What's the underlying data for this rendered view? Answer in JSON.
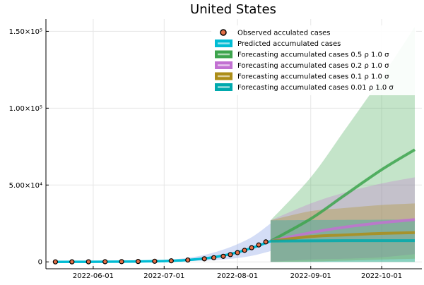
{
  "chart_data": {
    "type": "line",
    "title": "United States",
    "xlabel": "",
    "ylabel": "",
    "x_ticks": [
      "2022-06-01",
      "2022-07-01",
      "2022-08-01",
      "2022-09-01",
      "2022-10-01"
    ],
    "y_ticks": [
      {
        "value": 0,
        "label": "0"
      },
      {
        "value": 50000,
        "label": "5.00×10⁴"
      },
      {
        "value": 100000,
        "label": "1.00×10⁵"
      },
      {
        "value": 150000,
        "label": "1.50×10⁵"
      }
    ],
    "xlim": [
      "2022-05-12",
      "2022-10-18"
    ],
    "ylim": [
      -4500,
      158000
    ],
    "grid": true,
    "legend_position": "top-right",
    "legend": [
      {
        "label": "Observed acculated cases",
        "color": "#e26f46",
        "kind": "marker"
      },
      {
        "label": "Predicted accumulated cases",
        "color": "#00bcd4",
        "kind": "fill"
      },
      {
        "label": "Forecasting accumulated cases 0.5 ρ 1.0 σ",
        "color": "#3da44d",
        "kind": "fill"
      },
      {
        "label": "Forecasting accumulated cases 0.2 ρ 1.0 σ",
        "color": "#c271d2",
        "kind": "fill"
      },
      {
        "label": "Forecasting accumulated cases 0.1 ρ 1.0 σ",
        "color": "#ac8d18",
        "kind": "fill"
      },
      {
        "label": "Forecasting accumulated cases 0.01 ρ 1.0 σ",
        "color": "#00a9ad",
        "kind": "fill"
      }
    ],
    "observed": {
      "x": [
        "2022-05-16",
        "2022-05-23",
        "2022-05-30",
        "2022-06-06",
        "2022-06-13",
        "2022-06-20",
        "2022-06-27",
        "2022-07-04",
        "2022-07-11",
        "2022-07-18",
        "2022-07-22",
        "2022-07-26",
        "2022-07-29",
        "2022-08-01",
        "2022-08-04",
        "2022-08-07",
        "2022-08-10",
        "2022-08-13"
      ],
      "y": [
        0,
        20,
        50,
        90,
        150,
        250,
        400,
        700,
        1200,
        2000,
        2700,
        3600,
        4700,
        6000,
        7500,
        9200,
        11000,
        13000
      ]
    },
    "predicted": {
      "x": [
        "2022-05-16",
        "2022-05-30",
        "2022-06-13",
        "2022-06-27",
        "2022-07-04",
        "2022-07-11",
        "2022-07-18",
        "2022-07-25",
        "2022-08-01",
        "2022-08-08",
        "2022-08-15"
      ],
      "y": [
        0,
        50,
        150,
        400,
        700,
        1200,
        2200,
        3800,
        6200,
        9500,
        13500
      ],
      "band_upper": [
        0,
        100,
        300,
        900,
        1500,
        2600,
        4500,
        7500,
        11500,
        17000,
        25000
      ],
      "band_lower": [
        0,
        20,
        60,
        150,
        250,
        450,
        800,
        1400,
        2500,
        4200,
        7000
      ]
    },
    "forecast_x": [
      "2022-08-15",
      "2022-09-01",
      "2022-09-15",
      "2022-10-01",
      "2022-10-15"
    ],
    "forecasts": [
      {
        "name": "Forecasting accumulated cases 0.5 ρ 1.0 σ",
        "color": "#3da44d",
        "y": [
          13500,
          28000,
          43000,
          60000,
          73000
        ],
        "upper": [
          27000,
          55000,
          85000,
          120000,
          153000
        ],
        "lower": [
          0,
          0,
          0,
          0,
          0
        ]
      },
      {
        "name": "Forecasting accumulated cases 0.2 ρ 1.0 σ",
        "color": "#c271d2",
        "y": [
          13500,
          19000,
          22500,
          25500,
          27500
        ],
        "upper": [
          27000,
          38000,
          45000,
          51000,
          55000
        ],
        "lower": [
          0,
          1500,
          2000,
          3000,
          5000
        ]
      },
      {
        "name": "Forecasting accumulated cases 0.1 ρ 1.0 σ",
        "color": "#ac8d18",
        "y": [
          13500,
          16500,
          17500,
          18500,
          19000
        ],
        "upper": [
          27000,
          33000,
          35000,
          37000,
          38000
        ],
        "lower": [
          0,
          200,
          800,
          1500,
          2000
        ]
      },
      {
        "name": "Forecasting accumulated cases 0.01 ρ 1.0 σ",
        "color": "#00a9ad",
        "y": [
          13500,
          13700,
          13800,
          13800,
          13800
        ],
        "upper": [
          27000,
          27200,
          27300,
          27400,
          27500
        ],
        "lower": [
          0,
          0,
          0,
          0,
          0
        ]
      }
    ]
  }
}
